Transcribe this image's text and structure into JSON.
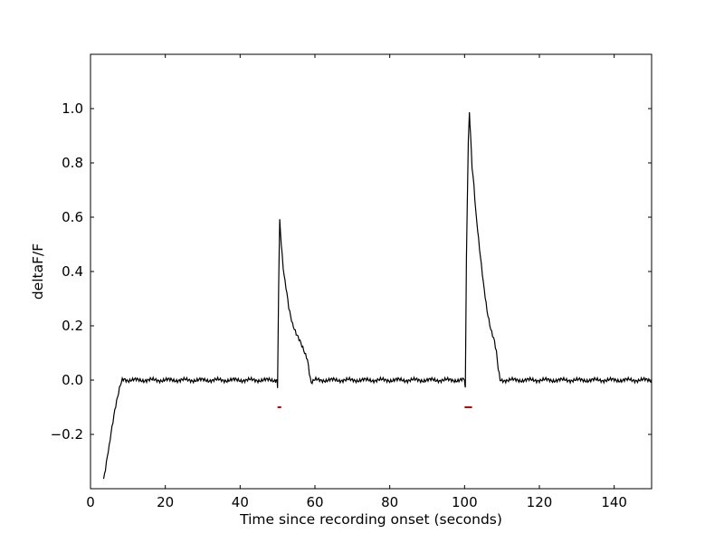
{
  "chart_data": {
    "type": "line",
    "title": "",
    "xlabel": "Time since recording onset (seconds)",
    "ylabel": "deltaF/F",
    "xlim": [
      0,
      150
    ],
    "ylim": [
      -0.4,
      1.2
    ],
    "xticks": [
      0,
      20,
      40,
      60,
      80,
      100,
      120,
      140
    ],
    "xtick_labels": [
      "0",
      "20",
      "40",
      "60",
      "80",
      "100",
      "120",
      "140"
    ],
    "yticks": [
      -0.2,
      0.0,
      0.2,
      0.4,
      0.6,
      0.8,
      1.0
    ],
    "ytick_labels": [
      "−0.2",
      "0.0",
      "0.2",
      "0.4",
      "0.6",
      "0.8",
      "1.0"
    ],
    "grid": false,
    "line_color": "#000000",
    "marker_color": "#cc0000",
    "series": [
      {
        "x": [
          3.5,
          4.0,
          4.5,
          5.0,
          5.5,
          6.0,
          6.5,
          7.0,
          7.5,
          8.0,
          8.5,
          9.0,
          10,
          15,
          20,
          25,
          30,
          35,
          40,
          45,
          49.5,
          49.8,
          50.0,
          50.3,
          50.6,
          51.0,
          51.5,
          52.0,
          52.5,
          53.0,
          54.0,
          55.0,
          56.0,
          57.0,
          58.0,
          58.5,
          59.0,
          60,
          70,
          80,
          90,
          100,
          100.2,
          100.5,
          101.0,
          101.3,
          101.6,
          102.0,
          102.5,
          103.0,
          104.0,
          105.0,
          106.0,
          107.0,
          108.0,
          108.5,
          109.0,
          109.5,
          110,
          120,
          130,
          140,
          150
        ],
        "y": [
          -0.37,
          -0.33,
          -0.28,
          -0.24,
          -0.19,
          -0.15,
          -0.11,
          -0.08,
          -0.05,
          -0.02,
          0.0,
          0.005,
          0.0,
          0.0,
          0.0,
          0.0,
          0.0,
          0.0,
          0.0,
          0.0,
          0.0,
          0.0,
          -0.03,
          0.35,
          0.59,
          0.5,
          0.41,
          0.36,
          0.32,
          0.27,
          0.21,
          0.17,
          0.14,
          0.11,
          0.08,
          0.03,
          -0.01,
          0.0,
          0.0,
          0.0,
          0.0,
          0.0,
          -0.03,
          0.45,
          0.88,
          0.99,
          0.9,
          0.79,
          0.72,
          0.62,
          0.48,
          0.36,
          0.26,
          0.19,
          0.14,
          0.1,
          0.04,
          0.0,
          0.0,
          0.0,
          0.0,
          0.0,
          0.0
        ]
      }
    ],
    "stimulus_markers": [
      {
        "x_start": 50,
        "x_end": 51,
        "y": -0.1
      },
      {
        "x_start": 100,
        "x_end": 102,
        "y": -0.1
      }
    ]
  }
}
